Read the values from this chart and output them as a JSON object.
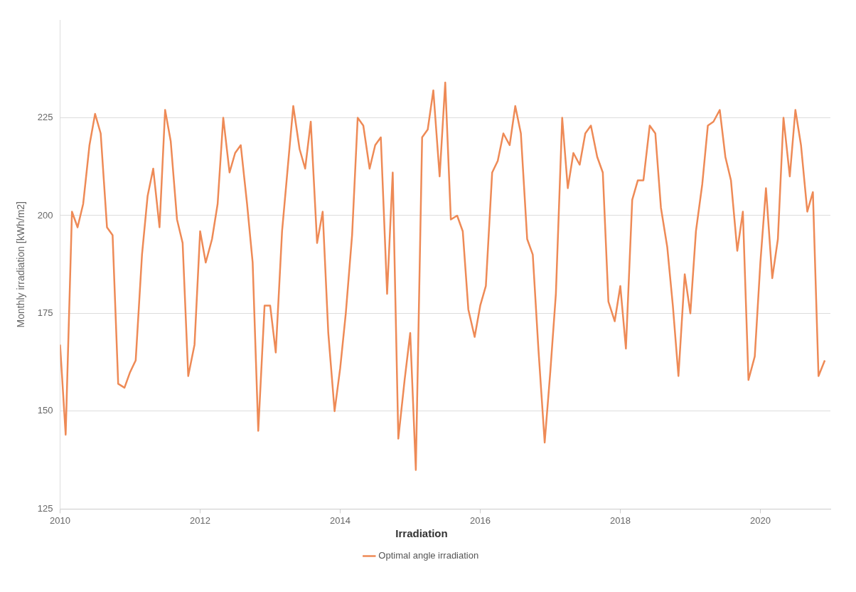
{
  "chart_data": {
    "type": "line",
    "ylabel": "Monthly irradiation [kWh/m2]",
    "legend_title": "Irradiation",
    "x": [
      2010,
      2010.08,
      2010.17,
      2010.25,
      2010.33,
      2010.42,
      2010.5,
      2010.58,
      2010.67,
      2010.75,
      2010.83,
      2010.92,
      2011,
      2011.08,
      2011.17,
      2011.25,
      2011.33,
      2011.42,
      2011.5,
      2011.58,
      2011.67,
      2011.75,
      2011.83,
      2011.92,
      2012,
      2012.08,
      2012.17,
      2012.25,
      2012.33,
      2012.42,
      2012.5,
      2012.58,
      2012.67,
      2012.75,
      2012.83,
      2012.92,
      2013,
      2013.08,
      2013.17,
      2013.25,
      2013.33,
      2013.42,
      2013.5,
      2013.58,
      2013.67,
      2013.75,
      2013.83,
      2013.92,
      2014,
      2014.08,
      2014.17,
      2014.25,
      2014.33,
      2014.42,
      2014.5,
      2014.58,
      2014.67,
      2014.75,
      2014.83,
      2014.92,
      2015,
      2015.08,
      2015.17,
      2015.25,
      2015.33,
      2015.42,
      2015.5,
      2015.58,
      2015.67,
      2015.75,
      2015.83,
      2015.92,
      2016,
      2016.08,
      2016.17,
      2016.25,
      2016.33,
      2016.42,
      2016.5,
      2016.58,
      2016.67,
      2016.75,
      2016.83,
      2016.92,
      2017,
      2017.08,
      2017.17,
      2017.25,
      2017.33,
      2017.42,
      2017.5,
      2017.58,
      2017.67,
      2017.75,
      2017.83,
      2017.92,
      2018,
      2018.08,
      2018.17,
      2018.25,
      2018.33,
      2018.42,
      2018.5,
      2018.58,
      2018.67,
      2018.75,
      2018.83,
      2018.92,
      2019,
      2019.08,
      2019.17,
      2019.25,
      2019.33,
      2019.42,
      2019.5,
      2019.58,
      2019.67,
      2019.75,
      2019.83,
      2019.92,
      2020,
      2020.08,
      2020.17,
      2020.25,
      2020.33,
      2020.42,
      2020.5,
      2020.58,
      2020.67,
      2020.75,
      2020.83,
      2020.92
    ],
    "series": [
      {
        "name": "Optimal angle irradiation",
        "color": "#ee8a56",
        "values": [
          167,
          144,
          201,
          197,
          203,
          218,
          226,
          221,
          197,
          195,
          157,
          156,
          160,
          163,
          190,
          205,
          212,
          197,
          227,
          219,
          199,
          193,
          159,
          167,
          196,
          188,
          194,
          203,
          225,
          211,
          216,
          218,
          203,
          188,
          145,
          177,
          177,
          165,
          196,
          212,
          228,
          217,
          212,
          224,
          193,
          201,
          170,
          150,
          161,
          175,
          195,
          225,
          223,
          212,
          218,
          220,
          180,
          211,
          143,
          158,
          170,
          135,
          220,
          222,
          232,
          210,
          234,
          199,
          200,
          196,
          176,
          169,
          177,
          182,
          211,
          214,
          221,
          218,
          228,
          221,
          194,
          190,
          166,
          142,
          160,
          180,
          225,
          207,
          216,
          213,
          221,
          223,
          215,
          211,
          178,
          173,
          182,
          166,
          204,
          209,
          209,
          223,
          221,
          202,
          192,
          177,
          159,
          185,
          175,
          196,
          208,
          223,
          224,
          227,
          215,
          209,
          191,
          201,
          158,
          164,
          188,
          207,
          184,
          194,
          225,
          210,
          227,
          218,
          201,
          206,
          159,
          163
        ]
      }
    ],
    "xlim": [
      2010,
      2021
    ],
    "xticks": [
      2010,
      2012,
      2014,
      2016,
      2018,
      2020
    ],
    "ylim": [
      125,
      250
    ],
    "yticks": [
      125,
      150,
      175,
      200,
      225
    ],
    "grid": "y",
    "legend": "bottom",
    "marker": "none",
    "line_style": "solid"
  }
}
